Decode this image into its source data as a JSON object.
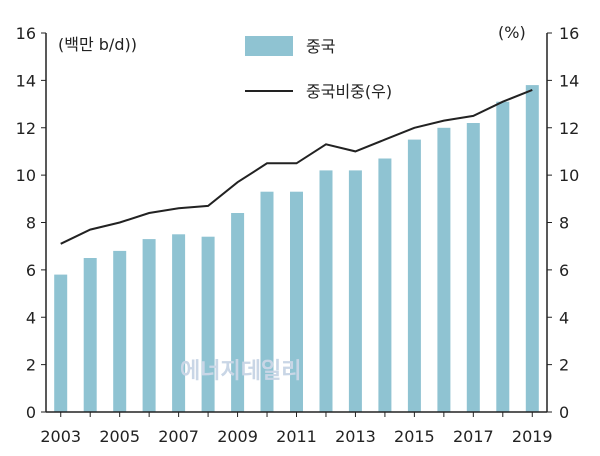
{
  "chart_data": {
    "type": "bar",
    "categories": [
      "2003",
      "2004",
      "2005",
      "2006",
      "2007",
      "2008",
      "2009",
      "2010",
      "2011",
      "2012",
      "2013",
      "2014",
      "2015",
      "2016",
      "2017",
      "2018",
      "2019"
    ],
    "x_tick_labels": [
      "2003",
      "2005",
      "2007",
      "2009",
      "2011",
      "2013",
      "2015",
      "2017",
      "2019"
    ],
    "series": [
      {
        "name": "중국",
        "type": "bar",
        "axis": "left",
        "color": "#8fc3d2",
        "values": [
          5.8,
          6.5,
          6.8,
          7.3,
          7.5,
          7.4,
          8.4,
          9.3,
          9.3,
          10.2,
          10.2,
          10.7,
          11.5,
          12.0,
          12.2,
          13.1,
          13.8
        ]
      },
      {
        "name": "중국비중(우)",
        "type": "line",
        "axis": "right",
        "color": "#222222",
        "values": [
          7.1,
          7.7,
          8.0,
          8.4,
          8.6,
          8.7,
          9.7,
          10.5,
          10.5,
          11.3,
          11.0,
          11.5,
          12.0,
          12.3,
          12.5,
          13.1,
          13.6
        ]
      }
    ],
    "y_left": {
      "unit_label": "(백만 b/d))",
      "ylim": [
        0,
        16
      ],
      "ticks": [
        "0",
        "2",
        "4",
        "6",
        "8",
        "10",
        "12",
        "14",
        "16"
      ]
    },
    "y_right": {
      "unit_label": "(%)",
      "ylim": [
        0,
        16
      ],
      "ticks": [
        "0",
        "2",
        "4",
        "6",
        "8",
        "10",
        "12",
        "14",
        "16"
      ]
    },
    "grid": false,
    "legend_position": "top-center"
  },
  "watermark": "에너지데일리"
}
